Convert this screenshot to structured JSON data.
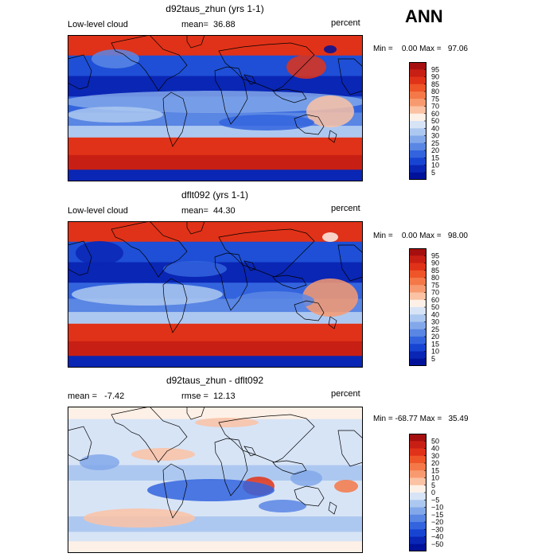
{
  "season": "ANN",
  "panels": [
    {
      "title": "d92taus_zhun (yrs 1-1)",
      "left_label": "Low-level cloud",
      "mean_text": "mean=  36.88",
      "units": "percent",
      "minmax": "Min =    0.00 Max =   97.06",
      "colorbar_levels": [
        "95",
        "90",
        "85",
        "80",
        "75",
        "70",
        "60",
        "50",
        "40",
        "30",
        "25",
        "20",
        "15",
        "10",
        "5"
      ],
      "colorbar_colors": [
        "#a50f0f",
        "#c81f14",
        "#e03218",
        "#ee5528",
        "#f47848",
        "#f89a70",
        "#fbc2a4",
        "#fdf0e6",
        "#d7e4f6",
        "#adc8f0",
        "#83a8ea",
        "#5a86e4",
        "#3364de",
        "#1844d2",
        "#0a26b4",
        "#00129a"
      ]
    },
    {
      "title": "dflt092 (yrs 1-1)",
      "left_label": "Low-level cloud",
      "mean_text": "mean=  44.30",
      "units": "percent",
      "minmax": "Min =    0.00 Max =   98.00",
      "colorbar_levels": [
        "95",
        "90",
        "85",
        "80",
        "75",
        "70",
        "60",
        "50",
        "40",
        "30",
        "25",
        "20",
        "15",
        "10",
        "5"
      ],
      "colorbar_colors": [
        "#a50f0f",
        "#c81f14",
        "#e03218",
        "#ee5528",
        "#f47848",
        "#f89a70",
        "#fbc2a4",
        "#fdf0e6",
        "#d7e4f6",
        "#adc8f0",
        "#83a8ea",
        "#5a86e4",
        "#3364de",
        "#1844d2",
        "#0a26b4",
        "#00129a"
      ]
    },
    {
      "title": "d92taus_zhun - dflt092",
      "left_label": "mean =   -7.42",
      "mean_text": "rmse =  12.13",
      "units": "percent",
      "minmax": "Min = -68.77 Max =   35.49",
      "colorbar_levels": [
        "50",
        "40",
        "30",
        "20",
        "15",
        "10",
        "5",
        "0",
        "−5",
        "−10",
        "−15",
        "−20",
        "−30",
        "−40",
        "−50"
      ],
      "colorbar_colors": [
        "#a50f0f",
        "#c81f14",
        "#e03218",
        "#ee5528",
        "#f47848",
        "#f89a70",
        "#fbc2a4",
        "#fdf0e6",
        "#d7e4f6",
        "#adc8f0",
        "#83a8ea",
        "#5a86e4",
        "#3364de",
        "#1844d2",
        "#0a26b4",
        "#00129a"
      ]
    }
  ],
  "chart_data": {
    "type": "heatmap",
    "variable": "Low-level cloud",
    "units": "percent",
    "season": "ANN",
    "panels": [
      {
        "title": "d92taus_zhun (yrs 1-1)",
        "mean": 36.88,
        "min": 0.0,
        "max": 97.06,
        "contour_levels": [
          5,
          10,
          15,
          20,
          25,
          30,
          40,
          50,
          60,
          70,
          75,
          80,
          85,
          90,
          95
        ]
      },
      {
        "title": "dflt092 (yrs 1-1)",
        "mean": 44.3,
        "min": 0.0,
        "max": 98.0,
        "contour_levels": [
          5,
          10,
          15,
          20,
          25,
          30,
          40,
          50,
          60,
          70,
          75,
          80,
          85,
          90,
          95
        ]
      },
      {
        "title": "d92taus_zhun - dflt092",
        "mean": -7.42,
        "rmse": 12.13,
        "min": -68.77,
        "max": 35.49,
        "contour_levels": [
          -50,
          -40,
          -30,
          -20,
          -15,
          -10,
          -5,
          0,
          5,
          10,
          15,
          20,
          30,
          40,
          50
        ]
      }
    ]
  }
}
